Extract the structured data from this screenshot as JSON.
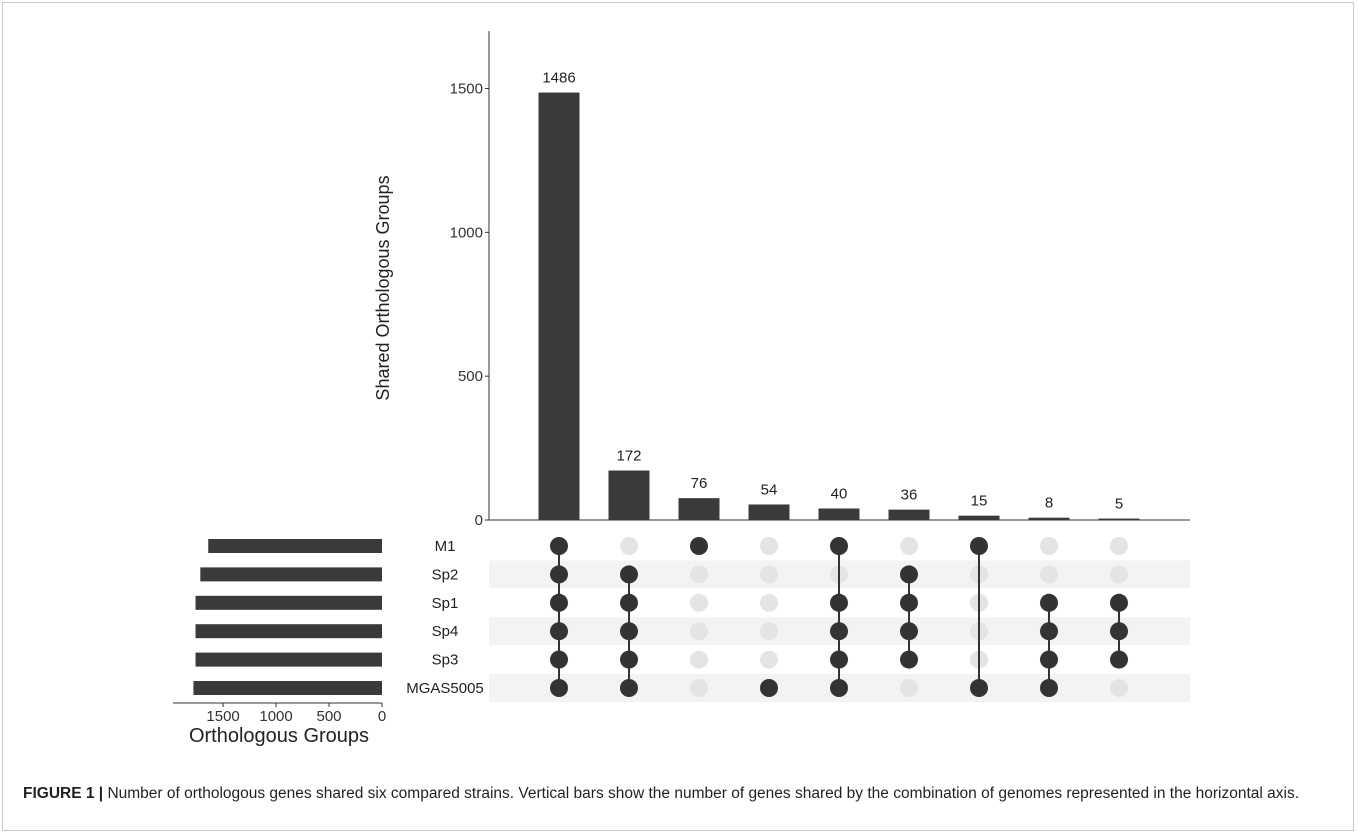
{
  "chart_data": {
    "type": "upset",
    "ylabel": "Shared Orthologous Groups",
    "yticks": [
      0,
      500,
      1000,
      1500
    ],
    "ylim": [
      0,
      1700
    ],
    "intersection_sizes": [
      1486,
      172,
      76,
      54,
      40,
      36,
      15,
      8,
      5
    ],
    "sets": [
      "M1",
      "Sp2",
      "Sp1",
      "Sp4",
      "Sp3",
      "MGAS5005"
    ],
    "set_sizes": [
      1640,
      1715,
      1760,
      1760,
      1760,
      1780
    ],
    "set_size_axis_label": "Orthologous Groups",
    "set_size_ticks": [
      1500,
      1000,
      500,
      0
    ],
    "set_size_max": 1850,
    "intersections": [
      [
        "M1",
        "Sp2",
        "Sp1",
        "Sp4",
        "Sp3",
        "MGAS5005"
      ],
      [
        "Sp2",
        "Sp1",
        "Sp4",
        "Sp3",
        "MGAS5005"
      ],
      [
        "M1"
      ],
      [
        "MGAS5005"
      ],
      [
        "M1",
        "Sp1",
        "Sp4",
        "Sp3",
        "MGAS5005"
      ],
      [
        "Sp2",
        "Sp1",
        "Sp4",
        "Sp3"
      ],
      [
        "M1",
        "MGAS5005"
      ],
      [
        "Sp1",
        "Sp4",
        "Sp3",
        "MGAS5005"
      ],
      [
        "Sp1",
        "Sp4",
        "Sp3"
      ]
    ],
    "colors": {
      "bar": "#3a3a3a",
      "dot_active": "#333333",
      "dot_inactive": "#e4e4e4",
      "stripe": "#f3f3f3"
    }
  },
  "caption": {
    "label": "FIGURE 1 |",
    "text": " Number of orthologous genes shared six compared strains. Vertical bars show the number of genes shared by the combination of genomes represented in the horizontal axis."
  }
}
